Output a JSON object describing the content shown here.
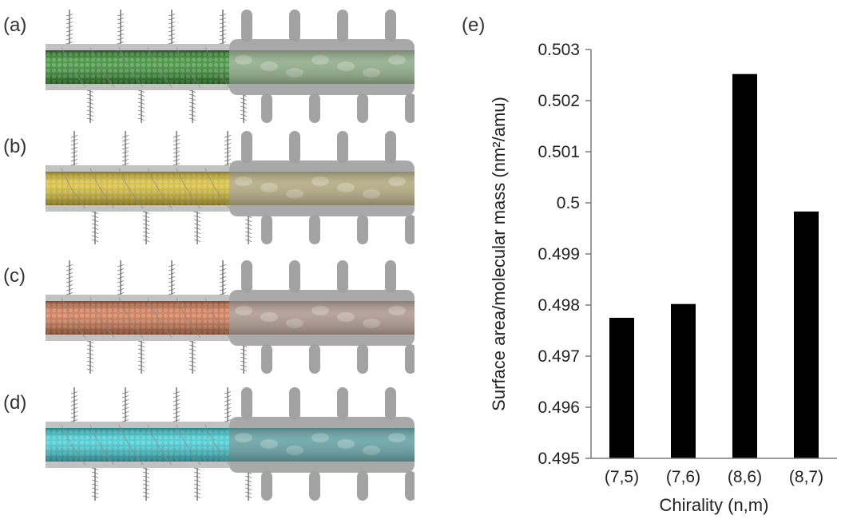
{
  "panels": [
    {
      "label": "(a)",
      "tube_color": "#2f8a2a",
      "tint": "#8fae86"
    },
    {
      "label": "(b)",
      "tube_color": "#d4b82a",
      "tint": "#b7ad7e"
    },
    {
      "label": "(c)",
      "tube_color": "#cc7047",
      "tint": "#b09a8e"
    },
    {
      "label": "(d)",
      "tube_color": "#37c9d1",
      "tint": "#5fa3a6"
    }
  ],
  "chart_label": "(e)",
  "chart_data": {
    "type": "bar",
    "categories": [
      "(7,5)",
      "(7,6)",
      "(8,6)",
      "(8,7)"
    ],
    "values": [
      0.49775,
      0.49802,
      0.50252,
      0.49983
    ],
    "xlabel": "Chirality (n,m)",
    "ylabel": "Surface area/molecular mass (nm²/amu)",
    "ylim": [
      0.495,
      0.503
    ],
    "yticks": [
      "0.495",
      "0.496",
      "0.497",
      "0.498",
      "0.499",
      "0.5",
      "0.501",
      "0.502",
      "0.503"
    ],
    "bar_color": "#000000",
    "grid": false
  }
}
